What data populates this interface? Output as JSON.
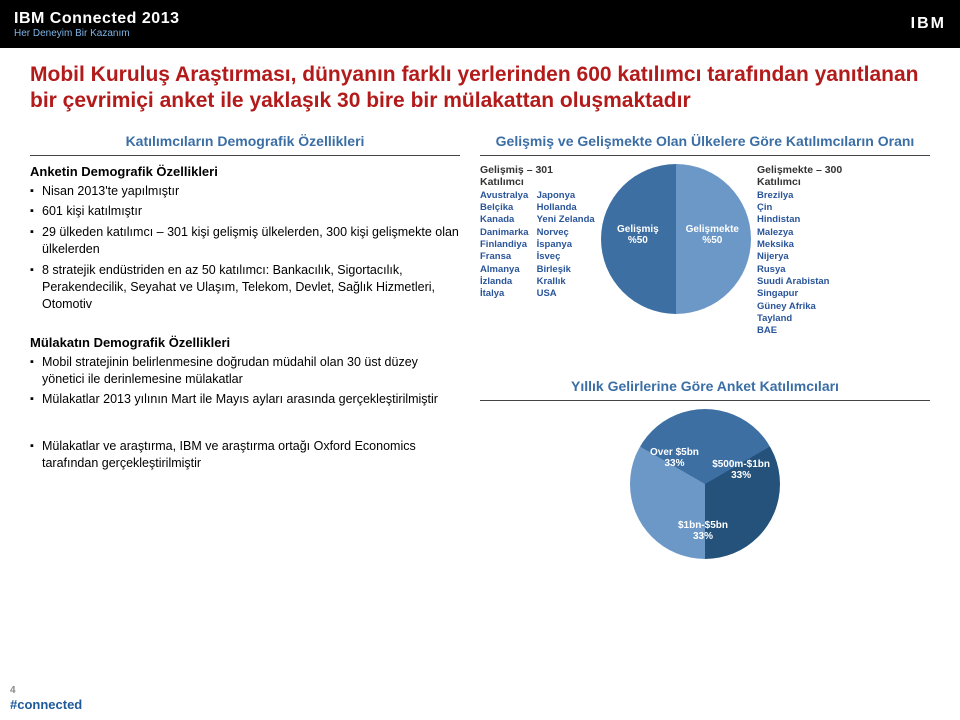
{
  "header": {
    "title": "IBM Connected 2013",
    "sub": "Her Deneyim Bir Kazanım",
    "logo": "IBM"
  },
  "slide": {
    "title": "Mobil Kuruluş Araştırması, dünyanın farklı yerlerinden 600 katılımcı tarafından yanıtlanan bir çevrimiçi anket ile yaklaşık 30 bire bir mülakattan oluşmaktadır"
  },
  "left": {
    "heading": "Katılımcıların Demografik Özellikleri",
    "anket_title": "Anketin Demografik Özellikleri",
    "anket_items": [
      "Nisan 2013'te yapılmıştır",
      "601 kişi katılmıştır",
      "29 ülkeden katılımcı – 301 kişi gelişmiş ülkelerden, 300 kişi gelişmekte olan ülkelerden",
      "8 stratejik endüstriden en az 50 katılımcı: Bankacılık, Sigortacılık, Perakendecilik, Seyahat ve Ulaşım, Telekom, Devlet, Sağlık Hizmetleri, Otomotiv"
    ],
    "mulakat_title": "Mülakatın Demografik Özellikleri",
    "mulakat_items": [
      "Mobil stratejinin belirlenmesine doğrudan müdahil olan 30 üst düzey yönetici ile derinlemesine mülakatlar",
      "Mülakatlar 2013 yılının Mart ile Mayıs ayları arasında gerçekleştirilmiştir"
    ],
    "bottom_items": [
      "Mülakatlar ve araştırma, IBM ve araştırma ortağı Oxford Economics tarafından gerçekleştirilmiştir"
    ]
  },
  "chart1": {
    "title": "Gelişmiş ve Gelişmekte Olan Ülkelere Göre Katılımcıların Oranı",
    "dev_title": "Gelişmiş – 301 Katılımcı",
    "dev_countries_a": [
      "Avustralya",
      "Belçika",
      "Kanada",
      "Danimarka",
      "Finlandiya",
      "Fransa",
      "Almanya",
      "İzlanda",
      "İtalya"
    ],
    "dev_countries_b": [
      "Japonya",
      "Hollanda",
      "Yeni Zelanda",
      "Norveç",
      "İspanya",
      "İsveç",
      "Birleşik Krallık",
      "USA"
    ],
    "emg_title": "Gelişmekte – 300 Katılımcı",
    "emg_countries": [
      "Brezilya",
      "Çin",
      "Hindistan",
      "Malezya",
      "Meksika",
      "Nijerya",
      "Rusya",
      "Suudi Arabistan",
      "Singapur",
      "Güney Afrika",
      "Tayland",
      "BAE"
    ],
    "slices": [
      {
        "label": "Gelişmiş",
        "pct": "%50",
        "color": "#6b98c7"
      },
      {
        "label": "Gelişmekte",
        "pct": "%50",
        "color": "#3d6fa3"
      }
    ],
    "background": "#ffffff"
  },
  "chart2": {
    "title": "Yıllık Gelirlerine Göre Anket Katılımcıları",
    "slices": [
      {
        "label": "Over $5bn",
        "pct": "33%",
        "color": "#6b98c7",
        "angle_start": 180,
        "angle_end": 300
      },
      {
        "label": "$500m-$1bn",
        "pct": "33%",
        "color": "#3d6fa3",
        "angle_start": 300,
        "angle_end": 60
      },
      {
        "label": "$1bn-$5bn",
        "pct": "33%",
        "color": "#24527b",
        "angle_start": 60,
        "angle_end": 180
      }
    ]
  },
  "footer": {
    "page": "4",
    "tag": "#connected"
  }
}
